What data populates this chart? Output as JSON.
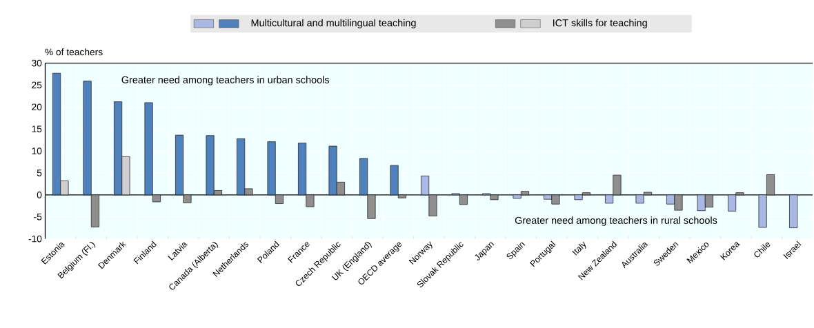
{
  "chart_data": {
    "type": "bar",
    "ylabel": "% of teachers",
    "categories": [
      "Estonia",
      "Belgium (Fl.)",
      "Denmark",
      "Finland",
      "Latvia",
      "Canada (Alberta)",
      "Netherlands",
      "Poland",
      "France",
      "Czech Republic",
      "UK (England)",
      "OECD average",
      "Norway",
      "Slovak Republic",
      "Japan",
      "Spain",
      "Portugal",
      "Italy",
      "New Zealand",
      "Australia",
      "Sweden",
      "Mexico",
      "Korea",
      "Chile",
      "Israel"
    ],
    "series": [
      {
        "name": "Multicultural and multilingual teaching",
        "color": "#4f81bd",
        "values": [
          27.7,
          25.9,
          21.2,
          21.0,
          13.6,
          13.5,
          12.8,
          12.1,
          11.8,
          11.1,
          8.3,
          6.7,
          4.3,
          0.3,
          0.3,
          -0.8,
          -1.0,
          -1.1,
          -1.9,
          -1.9,
          -2.1,
          -3.6,
          -3.7,
          -7.4,
          -7.5
        ],
        "colors": [
          "#4f81bd",
          "#4f81bd",
          "#4f81bd",
          "#4f81bd",
          "#4f81bd",
          "#4f81bd",
          "#4f81bd",
          "#4f81bd",
          "#4f81bd",
          "#4f81bd",
          "#4f81bd",
          "#4f81bd",
          "#a9b8e4",
          "#a9b8e4",
          "#a9b8e4",
          "#a9b8e4",
          "#a9b8e4",
          "#a9b8e4",
          "#a9b8e4",
          "#a9b8e4",
          "#a9b8e4",
          "#a9b8e4",
          "#a9b8e4",
          "#a9b8e4",
          "#a9b8e4"
        ]
      },
      {
        "name": "ICT skills for teaching",
        "color": "#8f8f8f",
        "values": [
          3.2,
          -7.3,
          8.7,
          -1.6,
          -1.8,
          1.0,
          1.4,
          -2.0,
          -2.7,
          2.9,
          -5.4,
          -0.7,
          -4.8,
          -2.2,
          -1.1,
          0.8,
          -2.1,
          0.5,
          4.5,
          0.6,
          -3.5,
          -2.8,
          0.5,
          4.6,
          null
        ],
        "colors": [
          "#cfcfcf",
          "#8f8f8f",
          "#cfcfcf",
          "#8f8f8f",
          "#8f8f8f",
          "#8f8f8f",
          "#8f8f8f",
          "#8f8f8f",
          "#8f8f8f",
          "#8f8f8f",
          "#8f8f8f",
          "#8f8f8f",
          "#8f8f8f",
          "#8f8f8f",
          "#8f8f8f",
          "#8f8f8f",
          "#8f8f8f",
          "#8f8f8f",
          "#8f8f8f",
          "#8f8f8f",
          "#8f8f8f",
          "#8f8f8f",
          "#8f8f8f",
          "#8f8f8f",
          "#8f8f8f"
        ]
      }
    ],
    "ylim": [
      -10,
      30
    ],
    "yticks": [
      -10,
      -5,
      0,
      5,
      10,
      15,
      20,
      25,
      30
    ],
    "grid": true,
    "legend": "top",
    "annotations": [
      "Greater need among teachers in urban schools",
      "Greater need among teachers in rural schools"
    ]
  }
}
